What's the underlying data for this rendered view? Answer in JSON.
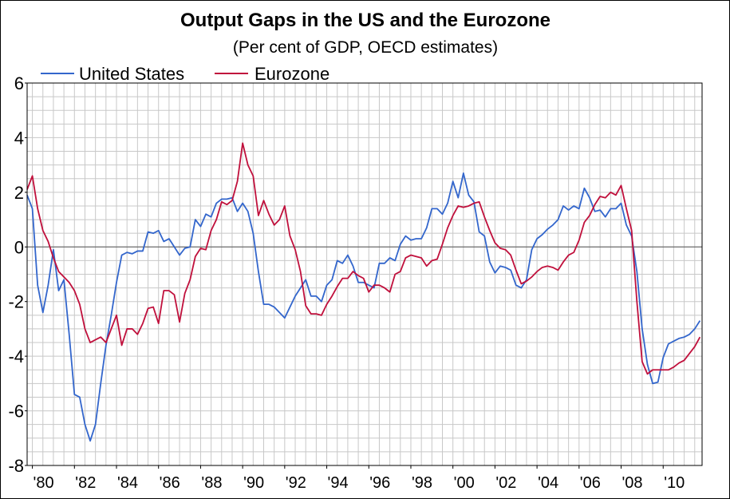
{
  "chart_data": {
    "type": "line",
    "title": "Output Gaps in the US and the Eurozone",
    "subtitle": "(Per cent of GDP, OECD estimates)",
    "xlabel": "",
    "ylabel": "",
    "ylim": [
      -8,
      6
    ],
    "yticks": [
      "6",
      "4",
      "2",
      "0",
      "-2",
      "-4",
      "-6",
      "-8"
    ],
    "xlim": [
      1979.75,
      2011.5
    ],
    "xticks": [
      {
        "x": 1980,
        "label": "'80"
      },
      {
        "x": 1982,
        "label": "'82"
      },
      {
        "x": 1984,
        "label": "'84"
      },
      {
        "x": 1986,
        "label": "'86"
      },
      {
        "x": 1988,
        "label": "'88"
      },
      {
        "x": 1990,
        "label": "'90"
      },
      {
        "x": 1992,
        "label": "'92"
      },
      {
        "x": 1994,
        "label": "'94"
      },
      {
        "x": 1996,
        "label": "'96"
      },
      {
        "x": 1998,
        "label": "'98"
      },
      {
        "x": 2000,
        "label": "'00"
      },
      {
        "x": 2002,
        "label": "'02"
      },
      {
        "x": 2004,
        "label": "'04"
      },
      {
        "x": 2006,
        "label": "'06"
      },
      {
        "x": 2008,
        "label": "'08"
      },
      {
        "x": 2010,
        "label": "'10"
      }
    ],
    "grid": true,
    "zero_line": true,
    "legend_position": "top-left",
    "series": [
      {
        "name": "United States",
        "color": "#3366cc",
        "points": [
          [
            1979.75,
            1.9
          ],
          [
            1980.0,
            1.4
          ],
          [
            1980.25,
            -1.4
          ],
          [
            1980.5,
            -2.4
          ],
          [
            1980.75,
            -1.4
          ],
          [
            1981.0,
            -0.1
          ],
          [
            1981.25,
            -1.6
          ],
          [
            1981.5,
            -1.2
          ],
          [
            1981.75,
            -3.2
          ],
          [
            1982.0,
            -5.4
          ],
          [
            1982.25,
            -5.5
          ],
          [
            1982.5,
            -6.5
          ],
          [
            1982.75,
            -7.1
          ],
          [
            1983.0,
            -6.5
          ],
          [
            1983.25,
            -5.0
          ],
          [
            1983.5,
            -3.6
          ],
          [
            1983.75,
            -2.5
          ],
          [
            1984.0,
            -1.3
          ],
          [
            1984.25,
            -0.3
          ],
          [
            1984.5,
            -0.2
          ],
          [
            1984.75,
            -0.25
          ],
          [
            1985.0,
            -0.15
          ],
          [
            1985.25,
            -0.15
          ],
          [
            1985.5,
            0.55
          ],
          [
            1985.75,
            0.5
          ],
          [
            1986.0,
            0.6
          ],
          [
            1986.25,
            0.2
          ],
          [
            1986.5,
            0.3
          ],
          [
            1986.75,
            0.0
          ],
          [
            1987.0,
            -0.3
          ],
          [
            1987.25,
            -0.05
          ],
          [
            1987.5,
            0.0
          ],
          [
            1987.75,
            1.0
          ],
          [
            1988.0,
            0.75
          ],
          [
            1988.25,
            1.2
          ],
          [
            1988.5,
            1.1
          ],
          [
            1988.75,
            1.6
          ],
          [
            1989.0,
            1.75
          ],
          [
            1989.25,
            1.75
          ],
          [
            1989.5,
            1.8
          ],
          [
            1989.75,
            1.3
          ],
          [
            1990.0,
            1.6
          ],
          [
            1990.25,
            1.3
          ],
          [
            1990.5,
            0.5
          ],
          [
            1990.75,
            -0.9
          ],
          [
            1991.0,
            -2.1
          ],
          [
            1991.25,
            -2.1
          ],
          [
            1991.5,
            -2.2
          ],
          [
            1991.75,
            -2.4
          ],
          [
            1992.0,
            -2.6
          ],
          [
            1992.25,
            -2.2
          ],
          [
            1992.5,
            -1.8
          ],
          [
            1992.75,
            -1.5
          ],
          [
            1993.0,
            -1.2
          ],
          [
            1993.25,
            -1.8
          ],
          [
            1993.5,
            -1.8
          ],
          [
            1993.75,
            -2.0
          ],
          [
            1994.0,
            -1.4
          ],
          [
            1994.25,
            -1.2
          ],
          [
            1994.5,
            -0.5
          ],
          [
            1994.75,
            -0.6
          ],
          [
            1995.0,
            -0.3
          ],
          [
            1995.25,
            -0.7
          ],
          [
            1995.5,
            -1.3
          ],
          [
            1995.75,
            -1.3
          ],
          [
            1996.0,
            -1.4
          ],
          [
            1996.25,
            -1.5
          ],
          [
            1996.5,
            -0.6
          ],
          [
            1996.75,
            -0.6
          ],
          [
            1997.0,
            -0.4
          ],
          [
            1997.25,
            -0.5
          ],
          [
            1997.5,
            0.1
          ],
          [
            1997.75,
            0.4
          ],
          [
            1998.0,
            0.25
          ],
          [
            1998.25,
            0.3
          ],
          [
            1998.5,
            0.3
          ],
          [
            1998.75,
            0.7
          ],
          [
            1999.0,
            1.4
          ],
          [
            1999.25,
            1.4
          ],
          [
            1999.5,
            1.2
          ],
          [
            1999.75,
            1.6
          ],
          [
            2000.0,
            2.4
          ],
          [
            2000.25,
            1.8
          ],
          [
            2000.5,
            2.7
          ],
          [
            2000.75,
            1.9
          ],
          [
            2001.0,
            1.65
          ],
          [
            2001.25,
            0.55
          ],
          [
            2001.5,
            0.4
          ],
          [
            2001.75,
            -0.55
          ],
          [
            2002.0,
            -0.95
          ],
          [
            2002.25,
            -0.7
          ],
          [
            2002.5,
            -0.75
          ],
          [
            2002.75,
            -0.85
          ],
          [
            2003.0,
            -1.4
          ],
          [
            2003.25,
            -1.5
          ],
          [
            2003.5,
            -1.2
          ],
          [
            2003.75,
            -0.1
          ],
          [
            2004.0,
            0.3
          ],
          [
            2004.25,
            0.45
          ],
          [
            2004.5,
            0.65
          ],
          [
            2004.75,
            0.8
          ],
          [
            2005.0,
            1.0
          ],
          [
            2005.25,
            1.5
          ],
          [
            2005.5,
            1.35
          ],
          [
            2005.75,
            1.5
          ],
          [
            2006.0,
            1.4
          ],
          [
            2006.25,
            2.15
          ],
          [
            2006.5,
            1.8
          ],
          [
            2006.75,
            1.3
          ],
          [
            2007.0,
            1.35
          ],
          [
            2007.25,
            1.1
          ],
          [
            2007.5,
            1.4
          ],
          [
            2007.75,
            1.4
          ],
          [
            2008.0,
            1.6
          ],
          [
            2008.25,
            0.8
          ],
          [
            2008.5,
            0.4
          ],
          [
            2008.75,
            -0.9
          ],
          [
            2009.0,
            -3.0
          ],
          [
            2009.25,
            -4.3
          ],
          [
            2009.5,
            -5.0
          ],
          [
            2009.75,
            -4.95
          ],
          [
            2010.0,
            -4.05
          ],
          [
            2010.25,
            -3.55
          ],
          [
            2010.5,
            -3.45
          ],
          [
            2010.75,
            -3.35
          ],
          [
            2011.0,
            -3.3
          ],
          [
            2011.25,
            -3.2
          ],
          [
            2011.5,
            -3.0
          ],
          [
            2011.75,
            -2.7
          ]
        ]
      },
      {
        "name": "Eurozone",
        "color": "#c0103c",
        "points": [
          [
            1979.75,
            2.1
          ],
          [
            1980.0,
            2.6
          ],
          [
            1980.25,
            1.4
          ],
          [
            1980.5,
            0.6
          ],
          [
            1980.75,
            0.2
          ],
          [
            1981.0,
            -0.4
          ],
          [
            1981.25,
            -0.9
          ],
          [
            1981.5,
            -1.1
          ],
          [
            1981.75,
            -1.3
          ],
          [
            1982.0,
            -1.6
          ],
          [
            1982.25,
            -2.1
          ],
          [
            1982.5,
            -3.0
          ],
          [
            1982.75,
            -3.5
          ],
          [
            1983.0,
            -3.4
          ],
          [
            1983.25,
            -3.3
          ],
          [
            1983.5,
            -3.5
          ],
          [
            1983.75,
            -3.0
          ],
          [
            1984.0,
            -2.5
          ],
          [
            1984.25,
            -3.6
          ],
          [
            1984.5,
            -3.0
          ],
          [
            1984.75,
            -3.0
          ],
          [
            1985.0,
            -3.2
          ],
          [
            1985.25,
            -2.8
          ],
          [
            1985.5,
            -2.25
          ],
          [
            1985.75,
            -2.2
          ],
          [
            1986.0,
            -2.8
          ],
          [
            1986.25,
            -1.6
          ],
          [
            1986.5,
            -1.6
          ],
          [
            1986.75,
            -1.75
          ],
          [
            1987.0,
            -2.75
          ],
          [
            1987.25,
            -1.7
          ],
          [
            1987.5,
            -1.2
          ],
          [
            1987.75,
            -0.35
          ],
          [
            1988.0,
            -0.05
          ],
          [
            1988.25,
            -0.1
          ],
          [
            1988.5,
            0.6
          ],
          [
            1988.75,
            1.0
          ],
          [
            1989.0,
            1.65
          ],
          [
            1989.25,
            1.55
          ],
          [
            1989.5,
            1.7
          ],
          [
            1989.75,
            2.4
          ],
          [
            1990.0,
            3.8
          ],
          [
            1990.25,
            3.0
          ],
          [
            1990.5,
            2.6
          ],
          [
            1990.75,
            1.15
          ],
          [
            1991.0,
            1.7
          ],
          [
            1991.25,
            1.2
          ],
          [
            1991.5,
            0.8
          ],
          [
            1991.75,
            1.0
          ],
          [
            1992.0,
            1.5
          ],
          [
            1992.25,
            0.4
          ],
          [
            1992.5,
            -0.1
          ],
          [
            1992.75,
            -0.9
          ],
          [
            1993.0,
            -2.15
          ],
          [
            1993.25,
            -2.45
          ],
          [
            1993.5,
            -2.45
          ],
          [
            1993.75,
            -2.5
          ],
          [
            1994.0,
            -2.1
          ],
          [
            1994.25,
            -1.8
          ],
          [
            1994.5,
            -1.45
          ],
          [
            1994.75,
            -1.15
          ],
          [
            1995.0,
            -1.15
          ],
          [
            1995.25,
            -0.9
          ],
          [
            1995.5,
            -1.05
          ],
          [
            1995.75,
            -1.15
          ],
          [
            1996.0,
            -1.65
          ],
          [
            1996.25,
            -1.4
          ],
          [
            1996.5,
            -1.4
          ],
          [
            1996.75,
            -1.5
          ],
          [
            1997.0,
            -1.65
          ],
          [
            1997.25,
            -1.0
          ],
          [
            1997.5,
            -0.9
          ],
          [
            1997.75,
            -0.4
          ],
          [
            1998.0,
            -0.3
          ],
          [
            1998.25,
            -0.35
          ],
          [
            1998.5,
            -0.4
          ],
          [
            1998.75,
            -0.7
          ],
          [
            1999.0,
            -0.5
          ],
          [
            1999.25,
            -0.45
          ],
          [
            1999.5,
            0.1
          ],
          [
            1999.75,
            0.7
          ],
          [
            2000.0,
            1.15
          ],
          [
            2000.25,
            1.5
          ],
          [
            2000.5,
            1.45
          ],
          [
            2000.75,
            1.5
          ],
          [
            2001.0,
            1.6
          ],
          [
            2001.25,
            1.65
          ],
          [
            2001.5,
            1.1
          ],
          [
            2001.75,
            0.6
          ],
          [
            2002.0,
            0.15
          ],
          [
            2002.25,
            -0.05
          ],
          [
            2002.5,
            -0.1
          ],
          [
            2002.75,
            -0.3
          ],
          [
            2003.0,
            -0.85
          ],
          [
            2003.25,
            -1.35
          ],
          [
            2003.5,
            -1.25
          ],
          [
            2003.75,
            -1.1
          ],
          [
            2004.0,
            -0.9
          ],
          [
            2004.25,
            -0.75
          ],
          [
            2004.5,
            -0.7
          ],
          [
            2004.75,
            -0.75
          ],
          [
            2005.0,
            -0.85
          ],
          [
            2005.25,
            -0.55
          ],
          [
            2005.5,
            -0.3
          ],
          [
            2005.75,
            -0.2
          ],
          [
            2006.0,
            0.25
          ],
          [
            2006.25,
            0.9
          ],
          [
            2006.5,
            1.15
          ],
          [
            2006.75,
            1.55
          ],
          [
            2007.0,
            1.85
          ],
          [
            2007.25,
            1.8
          ],
          [
            2007.5,
            2.0
          ],
          [
            2007.75,
            1.9
          ],
          [
            2008.0,
            2.25
          ],
          [
            2008.25,
            1.4
          ],
          [
            2008.5,
            0.6
          ],
          [
            2008.75,
            -2.0
          ],
          [
            2009.0,
            -4.2
          ],
          [
            2009.25,
            -4.65
          ],
          [
            2009.5,
            -4.5
          ],
          [
            2009.75,
            -4.5
          ],
          [
            2010.0,
            -4.5
          ],
          [
            2010.25,
            -4.5
          ],
          [
            2010.5,
            -4.4
          ],
          [
            2010.75,
            -4.25
          ],
          [
            2011.0,
            -4.15
          ],
          [
            2011.25,
            -3.9
          ],
          [
            2011.5,
            -3.65
          ],
          [
            2011.75,
            -3.3
          ]
        ]
      }
    ]
  }
}
